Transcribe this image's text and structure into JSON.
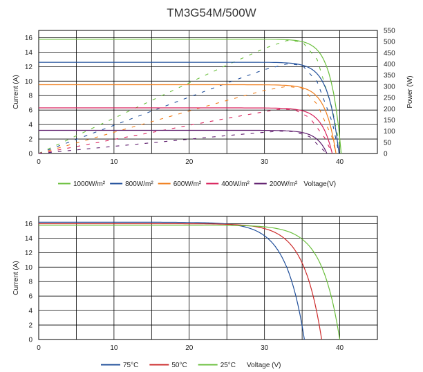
{
  "title": "TM3G54M/500W",
  "chart_data": [
    {
      "type": "line",
      "xlim": [
        0,
        45
      ],
      "ylim": [
        0,
        17
      ],
      "y2lim": [
        0,
        550
      ],
      "xticks": [
        0,
        10,
        20,
        30,
        40
      ],
      "yticks": [
        0,
        2,
        4,
        6,
        8,
        10,
        12,
        14,
        16
      ],
      "y2ticks": [
        0,
        50,
        100,
        150,
        200,
        250,
        300,
        350,
        400,
        450,
        500,
        550
      ],
      "xlabel": "Voltage(V)",
      "ylabel": "Current (A)",
      "y2label": "Power (W)",
      "grid": true,
      "legend": "bottom",
      "series": [
        {
          "name": "1000W/m²",
          "color": "#6abf3c",
          "isc": 15.8,
          "voc": 40.2,
          "knee": 34.5,
          "power": [
            [
              0,
              0
            ],
            [
              5,
              79
            ],
            [
              10,
              158
            ],
            [
              15,
              237
            ],
            [
              20,
              316
            ],
            [
              25,
              395
            ],
            [
              30,
              470
            ],
            [
              33,
              505
            ],
            [
              35,
              500
            ],
            [
              37,
              420
            ],
            [
              39,
              200
            ],
            [
              40.2,
              0
            ]
          ]
        },
        {
          "name": "800W/m²",
          "color": "#1f4e9a",
          "isc": 12.6,
          "voc": 39.9,
          "knee": 34.0,
          "power": [
            [
              0,
              0
            ],
            [
              5,
              63
            ],
            [
              10,
              126
            ],
            [
              15,
              189
            ],
            [
              20,
              252
            ],
            [
              25,
              315
            ],
            [
              30,
              375
            ],
            [
              33,
              400
            ],
            [
              35,
              395
            ],
            [
              37,
              320
            ],
            [
              39,
              140
            ],
            [
              39.9,
              0
            ]
          ]
        },
        {
          "name": "600W/m²",
          "color": "#f07d1a",
          "isc": 9.5,
          "voc": 39.5,
          "knee": 33.5,
          "power": [
            [
              0,
              0
            ],
            [
              5,
              47
            ],
            [
              10,
              95
            ],
            [
              15,
              142
            ],
            [
              20,
              190
            ],
            [
              25,
              237
            ],
            [
              30,
              282
            ],
            [
              33,
              300
            ],
            [
              35,
              292
            ],
            [
              37,
              220
            ],
            [
              39,
              70
            ],
            [
              39.5,
              0
            ]
          ]
        },
        {
          "name": "400W/m²",
          "color": "#d81f5a",
          "isc": 6.3,
          "voc": 39.0,
          "knee": 33.0,
          "power": [
            [
              0,
              0
            ],
            [
              5,
              31
            ],
            [
              10,
              63
            ],
            [
              15,
              94
            ],
            [
              20,
              126
            ],
            [
              25,
              157
            ],
            [
              30,
              187
            ],
            [
              32,
              198
            ],
            [
              34,
              196
            ],
            [
              36,
              160
            ],
            [
              38,
              70
            ],
            [
              39,
              0
            ]
          ]
        },
        {
          "name": "200W/m²",
          "color": "#5c1a6b",
          "isc": 3.2,
          "voc": 38.3,
          "knee": 32.5,
          "power": [
            [
              0,
              0
            ],
            [
              5,
              16
            ],
            [
              10,
              32
            ],
            [
              15,
              48
            ],
            [
              20,
              64
            ],
            [
              25,
              80
            ],
            [
              30,
              95
            ],
            [
              32,
              100
            ],
            [
              34,
              98
            ],
            [
              36,
              75
            ],
            [
              37.5,
              25
            ],
            [
              38.3,
              0
            ]
          ]
        }
      ]
    },
    {
      "type": "line",
      "xlim": [
        0,
        45
      ],
      "ylim": [
        0,
        17
      ],
      "xticks": [
        0,
        10,
        20,
        30,
        40
      ],
      "yticks": [
        0,
        2,
        4,
        6,
        8,
        10,
        12,
        14,
        16
      ],
      "xlabel": "Voltage (V)",
      "ylabel": "Current (A)",
      "grid": true,
      "legend": "bottom",
      "series": [
        {
          "name": "75°C",
          "color": "#1f4e9a",
          "isc": 16.2,
          "voc": 35.3,
          "knee": 25.0
        },
        {
          "name": "50°C",
          "color": "#cc2a2a",
          "isc": 16.0,
          "voc": 37.6,
          "knee": 27.5
        },
        {
          "name": "25°C",
          "color": "#6abf3c",
          "isc": 15.8,
          "voc": 40.0,
          "knee": 30.0
        }
      ]
    }
  ]
}
